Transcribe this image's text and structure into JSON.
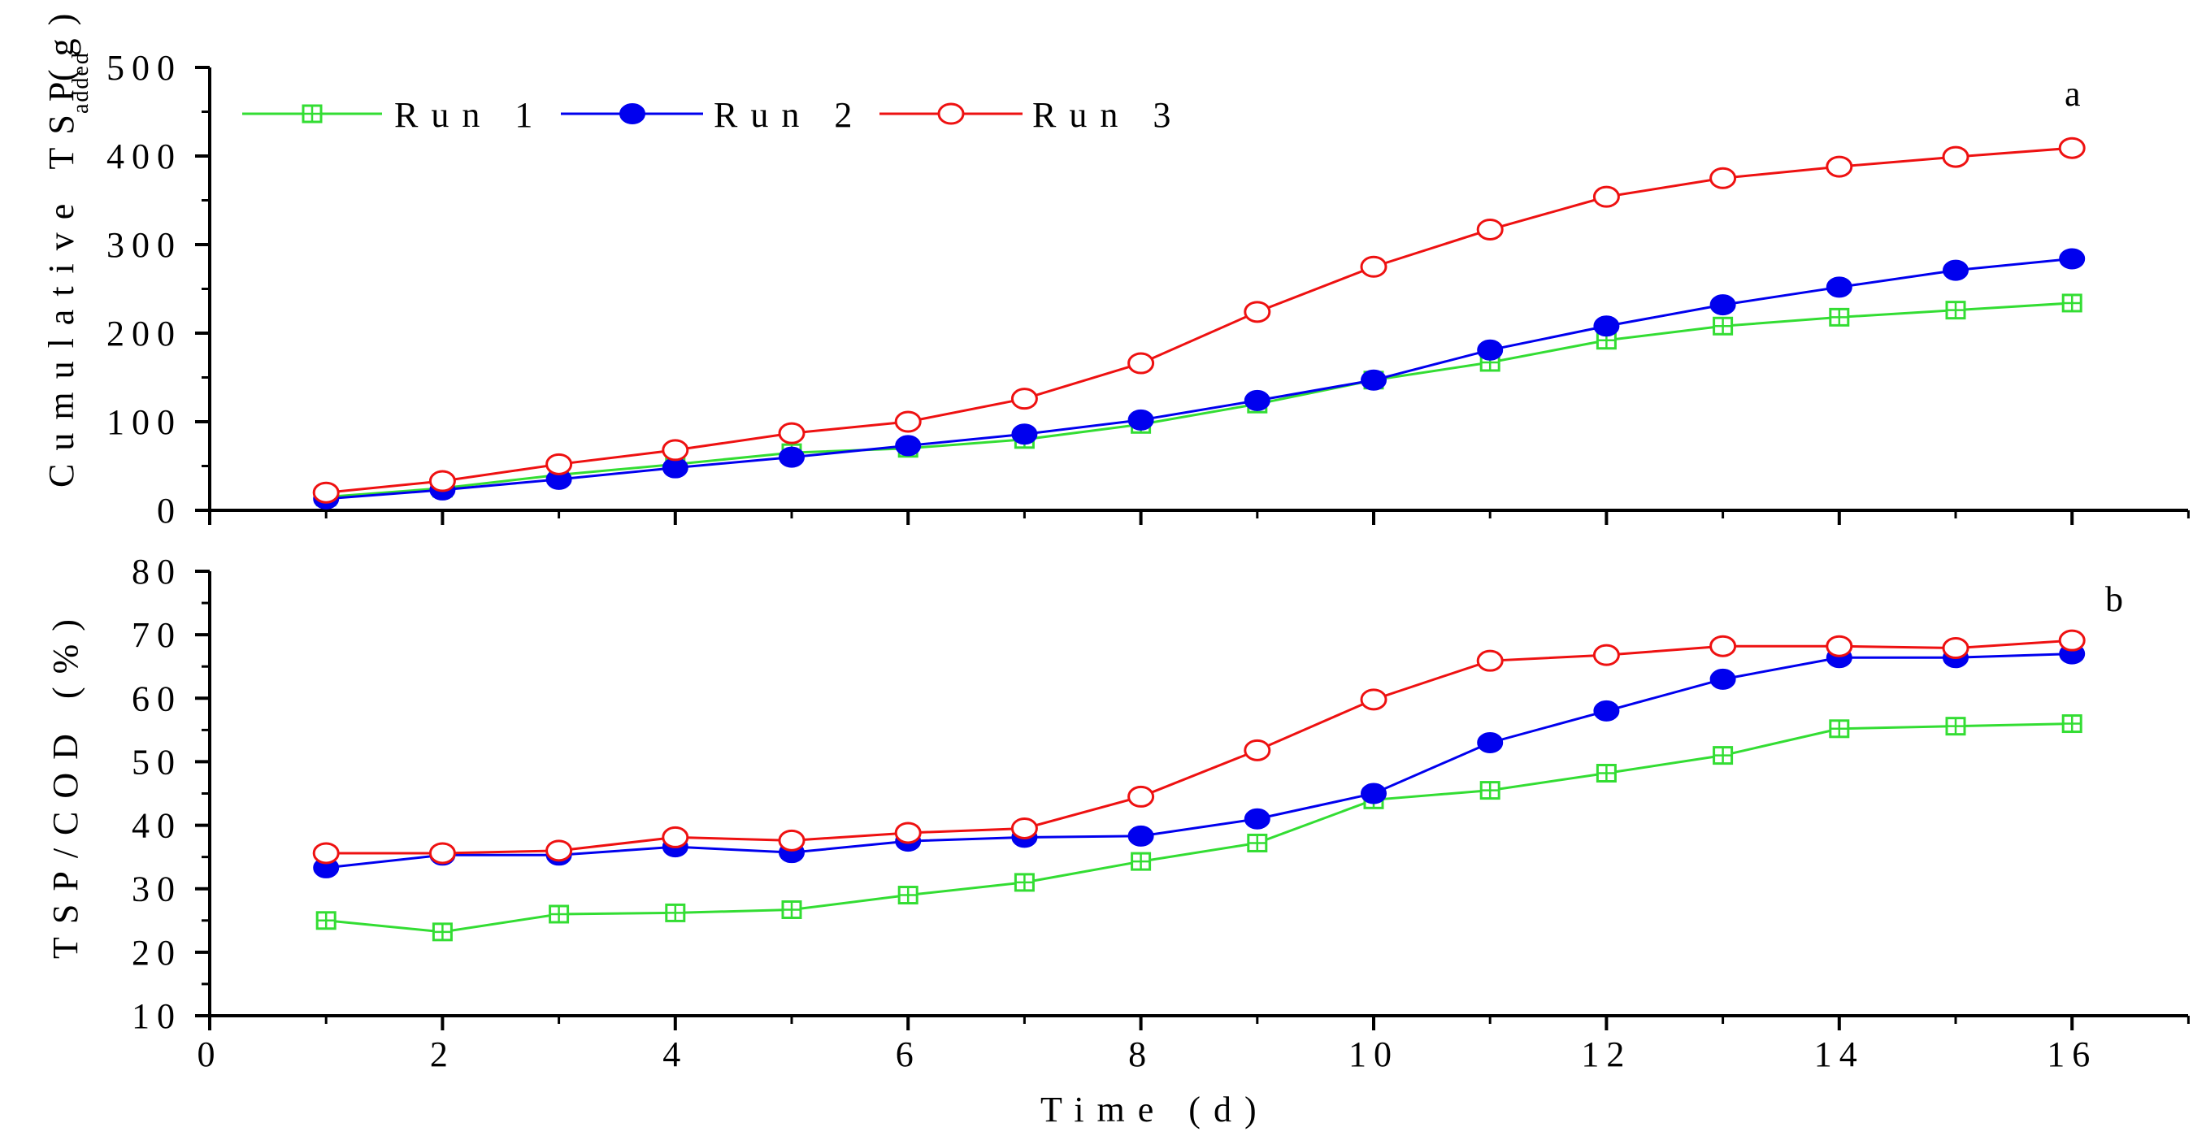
{
  "chart_data": [
    {
      "panel": "a",
      "type": "line",
      "ylabel": "Cumulative TSP",
      "ylabel_unit": "(g)",
      "ylabel_subscript": "added",
      "ylim": [
        0,
        500
      ],
      "yticks": [
        0,
        100,
        200,
        300,
        400,
        500
      ],
      "xlim": [
        0,
        17
      ],
      "x": [
        1,
        2,
        3,
        4,
        5,
        6,
        7,
        8,
        9,
        10,
        11,
        12,
        13,
        14,
        15,
        16
      ],
      "series": [
        {
          "name": "Run 1",
          "color": "#33dd33",
          "marker": "square-plus",
          "values": [
            15,
            25,
            40,
            52,
            65,
            70,
            80,
            97,
            120,
            147,
            167,
            192,
            208,
            218,
            226,
            234
          ]
        },
        {
          "name": "Run 2",
          "color": "#0000ee",
          "marker": "filled-circle",
          "values": [
            13,
            23,
            35,
            48,
            60,
            73,
            86,
            102,
            124,
            147,
            181,
            208,
            232,
            252,
            271,
            284
          ]
        },
        {
          "name": "Run 3",
          "color": "#ee1111",
          "marker": "open-circle",
          "values": [
            20,
            33,
            52,
            68,
            87,
            100,
            126,
            166,
            224,
            275,
            317,
            354,
            375,
            388,
            399,
            409
          ]
        }
      ]
    },
    {
      "panel": "b",
      "type": "line",
      "ylabel": "TSP/COD (%)",
      "xlabel": "Time (d)",
      "ylim": [
        10,
        80
      ],
      "yticks": [
        10,
        20,
        30,
        40,
        50,
        60,
        70,
        80
      ],
      "xlim": [
        0,
        17
      ],
      "xticks": [
        0,
        2,
        4,
        6,
        8,
        10,
        12,
        14,
        16
      ],
      "x": [
        1,
        2,
        3,
        4,
        5,
        6,
        7,
        8,
        9,
        10,
        11,
        12,
        13,
        14,
        15,
        16
      ],
      "series": [
        {
          "name": "Run 1",
          "color": "#33dd33",
          "marker": "square-plus",
          "values": [
            25,
            23.2,
            26,
            26.2,
            26.7,
            29,
            31,
            34.3,
            37.2,
            44,
            45.5,
            48.2,
            51,
            55.2,
            55.6,
            56
          ]
        },
        {
          "name": "Run 2",
          "color": "#0000ee",
          "marker": "filled-circle",
          "values": [
            33.3,
            35.3,
            35.3,
            36.6,
            35.7,
            37.5,
            38.1,
            38.3,
            41,
            45,
            53,
            58,
            63,
            66.4,
            66.4,
            67
          ]
        },
        {
          "name": "Run 3",
          "color": "#ee1111",
          "marker": "open-circle",
          "values": [
            35.6,
            35.6,
            36,
            38.1,
            37.6,
            38.8,
            39.5,
            44.5,
            51.8,
            59.8,
            65.9,
            66.8,
            68.2,
            68.2,
            67.9,
            69.1
          ]
        }
      ]
    }
  ],
  "legend": [
    {
      "label": "Run 1"
    },
    {
      "label": "Run 2"
    },
    {
      "label": "Run 3"
    }
  ],
  "panel_tags": {
    "a": "a",
    "b": "b"
  }
}
